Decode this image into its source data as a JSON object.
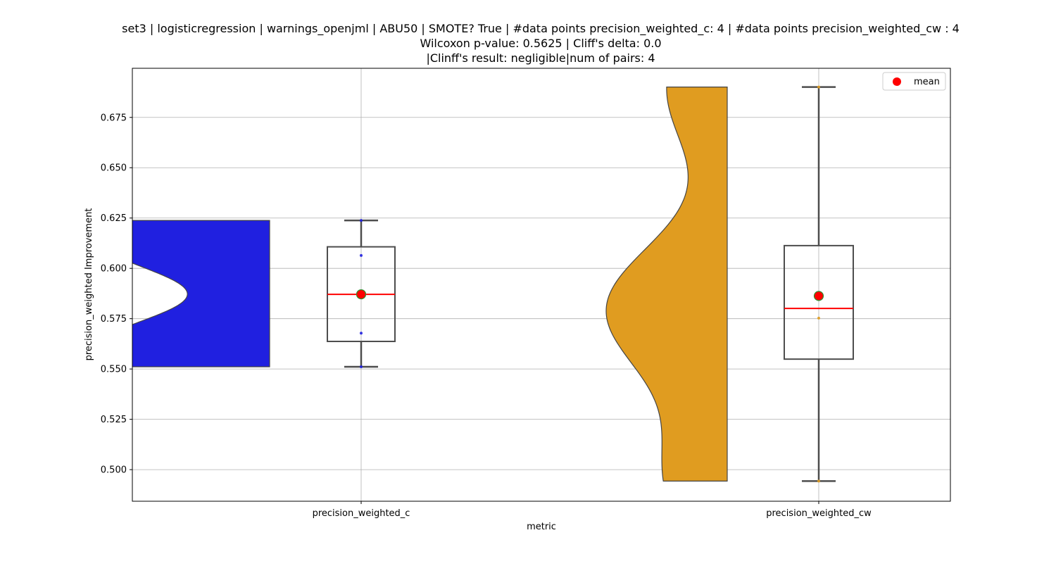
{
  "chart_data": {
    "type": "violin+box",
    "title_lines": [
      "set3 | logisticregression | warnings_openjml | ABU50 | SMOTE? True | #data points precision_weighted_c: 4 | #data points precision_weighted_cw : 4",
      "Wilcoxon p-value: 0.5625 | Cliff's delta: 0.0",
      "|Clinff's result: negligible|num of pairs: 4"
    ],
    "xlabel": "metric",
    "ylabel": "precision_weighted Improvement",
    "ylim": [
      0.4843,
      0.6994
    ],
    "yticks": [
      "0.500",
      "0.525",
      "0.550",
      "0.575",
      "0.600",
      "0.625",
      "0.650",
      "0.675"
    ],
    "grid": true,
    "legend": {
      "position": "top-right",
      "entries": [
        {
          "label": "mean",
          "color": "#ff0000"
        }
      ]
    },
    "categories": [
      "precision_weighted_c",
      "precision_weighted_cw"
    ],
    "series": [
      {
        "category": "precision_weighted_c",
        "violin_color": "#2020e0",
        "point_color": "#2020e0",
        "min": 0.5511,
        "q1": 0.5637,
        "median": 0.5871,
        "q3": 0.6107,
        "max": 0.6238,
        "mean": 0.5871,
        "points": [
          0.5511,
          0.5678,
          0.6064,
          0.6238
        ]
      },
      {
        "category": "precision_weighted_cw",
        "violin_color": "#e09c20",
        "point_color": "#e09c20",
        "min": 0.4943,
        "q1": 0.5549,
        "median": 0.5801,
        "q3": 0.6113,
        "max": 0.6901,
        "mean": 0.5863,
        "points": [
          0.4943,
          0.5753,
          0.5849,
          0.6901
        ]
      }
    ]
  }
}
